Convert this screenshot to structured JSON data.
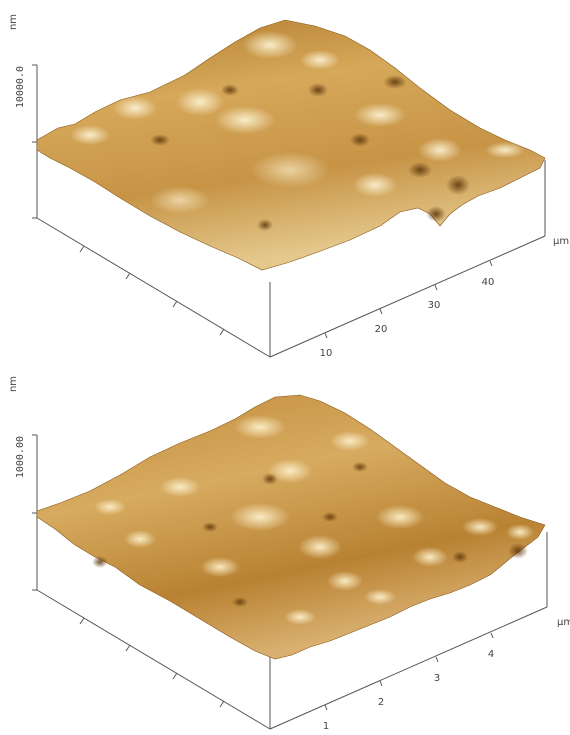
{
  "panels": [
    {
      "z_unit": "nm",
      "z_value": "10000.0",
      "xy_unit": "µm",
      "ticks": [
        "10",
        "20",
        "30",
        "40"
      ]
    },
    {
      "z_unit": "nm",
      "z_value": "1000.00",
      "xy_unit": "µm",
      "ticks": [
        "1",
        "2",
        "3",
        "4"
      ]
    }
  ],
  "colors": {
    "surface_dark": "#7a4a10",
    "surface_mid": "#c08a3a",
    "surface_light": "#f3e2b6",
    "axis": "#555555"
  }
}
